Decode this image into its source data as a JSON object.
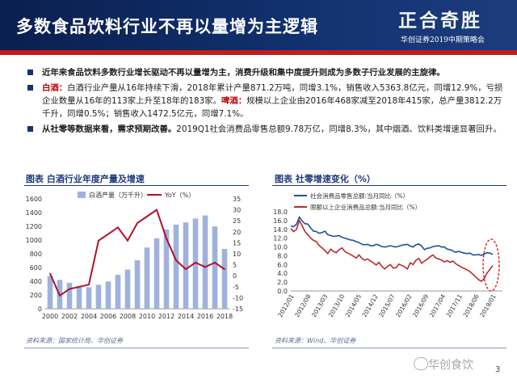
{
  "header": {
    "title": "多数食品饮料行业不再以量增为主逻辑",
    "brand_slogan": "正合奇胜",
    "brand_sub": "华创证券2019中期策略会"
  },
  "bullets": [
    {
      "bold": "近年来食品饮料多数行业增长驱动不再以量增为主，消费升级和集中度提升则成为多数子行业发展的主旋律。",
      "rest": ""
    },
    {
      "b1": "白酒：",
      "t1": "白酒行业产量从16年持续下滑，2018年累计产量871.2万吨，同增3.1%，销售收入5363.8亿元，同增12.9%，亏损企业数量从16年的113家上升至18年的183家。",
      "b2": "啤酒：",
      "t2": "规模以上企业由2016年468家减至2018年415家，总产量3812.2万千升，同增0.5%；销售收入1472.5亿元，同增7.1%。"
    },
    {
      "bold": "从社零等数据来看，需求预期改善。",
      "rest": "2019Q1社会消费品零售总额9.78万亿，同增8.3%，其中烟酒、饮料类增速显著回升。"
    }
  ],
  "charts": {
    "left_title": "图表   白酒行业年度产量及增速",
    "left_source": "资料来源：国家统计局、华创证券",
    "right_title": "图表   社零增速变化（%）",
    "right_source": "资料来源：Wind、华创证券"
  },
  "footer": {
    "watermark": "华创食饮",
    "page": "3"
  },
  "colors": {
    "navy": "#0a1f4e",
    "accent_red": "#c41a1a",
    "bar_blue": "#9fb2dc",
    "line_red": "#b0102a",
    "line_blue": "#1f4e9e",
    "line_red2": "#b52d2d"
  },
  "chart_data": [
    {
      "type": "bar",
      "title": "",
      "legend_position": "top",
      "categories": [
        "2000",
        "2001",
        "2002",
        "2003",
        "2004",
        "2005",
        "2006",
        "2007",
        "2008",
        "2009",
        "2010",
        "2011",
        "2012",
        "2013",
        "2014",
        "2015",
        "2016",
        "2017",
        "2018"
      ],
      "x_tick_labels": [
        "2000",
        "2002",
        "2004",
        "2006",
        "2008",
        "2010",
        "2012",
        "2014",
        "2016",
        "2018"
      ],
      "series": [
        {
          "name": "白酒产量（万千升）",
          "type": "bar",
          "axis": "left",
          "values": [
            476,
            420,
            378,
            330,
            312,
            350,
            397,
            494,
            570,
            707,
            891,
            1026,
            1153,
            1226,
            1257,
            1313,
            1358,
            1198,
            871
          ]
        },
        {
          "name": "YoY（%）",
          "type": "line",
          "axis": "right",
          "values": [
            1,
            -9,
            -6,
            -5,
            -4,
            16,
            19,
            22,
            16,
            24,
            27,
            30,
            17,
            7,
            3,
            6,
            4,
            6,
            3
          ]
        }
      ],
      "y_left": {
        "min": 0,
        "max": 1600,
        "ticks": [
          0,
          200,
          400,
          600,
          800,
          1000,
          1200,
          1400,
          1600
        ]
      },
      "y_right": {
        "min": -15,
        "max": 35,
        "ticks": [
          -15,
          -10,
          -5,
          0,
          5,
          10,
          15,
          20,
          25,
          30,
          35
        ]
      }
    },
    {
      "type": "line",
      "title": "",
      "legend_position": "top",
      "x_tick_labels": [
        "2012/01",
        "2012/08",
        "2013/03",
        "2013/10",
        "2014/05",
        "2014/12",
        "2015/07",
        "2016/02",
        "2016/09",
        "2017/04",
        "2017/11",
        "2018/06",
        "2019/01"
      ],
      "series": [
        {
          "name": "社会消费品零售总额:当月同比（%）",
          "values": [
            14.8,
            14.6,
            15.2,
            16.8,
            15.9,
            15.3,
            15.2,
            14.3,
            13.6,
            13.5,
            13.1,
            13.3,
            13.6,
            12.8,
            12.6,
            12.4,
            12.5,
            12.6,
            12.2,
            12.0,
            11.8,
            11.6,
            11.5,
            11.2,
            11.0,
            10.6,
            10.5,
            10.6,
            10.3,
            10.3,
            10.6,
            10.4,
            10.1,
            10.0,
            10.1,
            10.3,
            10.1,
            10.0,
            10.2,
            10.4,
            10.5,
            10.6,
            10.2,
            10.0,
            10.5,
            10.7,
            10.2,
            9.4,
            9.7,
            9.8,
            10.1,
            10.2,
            10.3,
            10.0,
            10.0,
            9.5,
            9.4,
            9.1,
            8.8,
            9.0,
            8.8,
            8.6,
            8.5,
            8.6,
            8.2,
            8.2,
            8.3,
            8.1,
            8.4,
            8.7,
            8.6,
            8.3
          ]
        },
        {
          "name": "限额以上企业消费品总额:当月同比（%）",
          "values": [
            14.2,
            13.5,
            14.0,
            16.0,
            14.8,
            13.5,
            12.8,
            12.0,
            11.5,
            11.2,
            10.3,
            9.8,
            9.2,
            8.5,
            9.5,
            9.0,
            8.7,
            9.4,
            9.8,
            9.0,
            8.6,
            8.3,
            7.9,
            7.5,
            8.2,
            7.4,
            7.0,
            7.3,
            6.8,
            6.4,
            5.9,
            6.5,
            5.6,
            5.0,
            5.6,
            6.0,
            5.2,
            5.3,
            6.1,
            5.8,
            5.5,
            5.0,
            6.4,
            6.0,
            7.0,
            7.4,
            6.3,
            6.8,
            7.2,
            7.8,
            8.2,
            7.5,
            7.3,
            7.0,
            6.6,
            6.9,
            6.5,
            6.8,
            6.2,
            5.8,
            5.4,
            5.1,
            4.8,
            4.4,
            3.8,
            3.2,
            2.6,
            2.2,
            2.8,
            4.1,
            4.9,
            5.8
          ]
        }
      ],
      "y": {
        "min": 0,
        "max": 18,
        "ticks": [
          0,
          2,
          4,
          6,
          8,
          10,
          12,
          14,
          16,
          18
        ]
      }
    }
  ]
}
